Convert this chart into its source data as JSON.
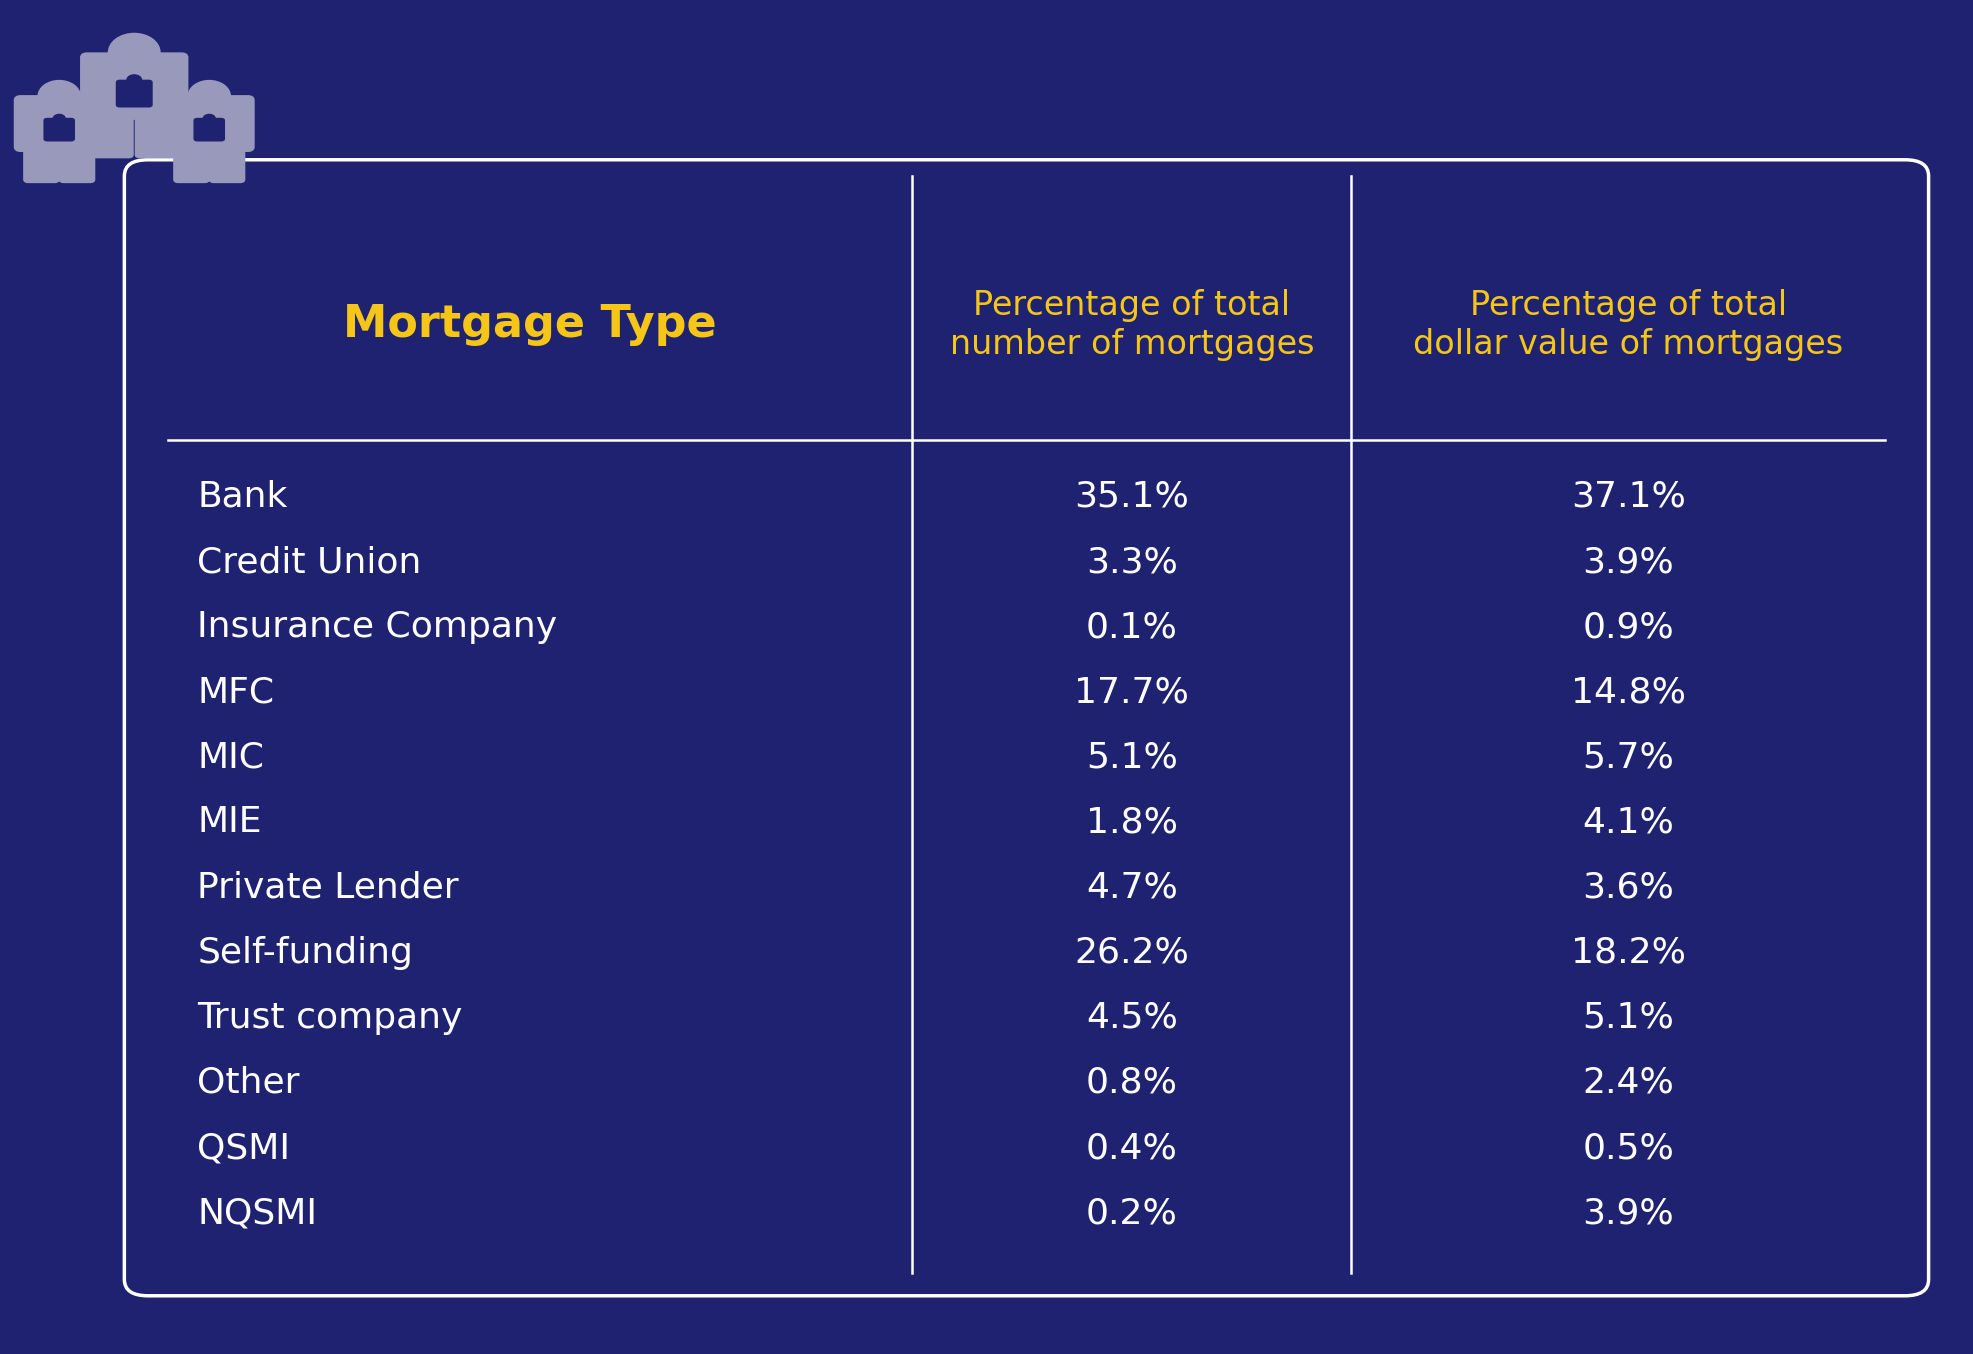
{
  "background_color": "#1e2270",
  "border_color": "#ffffff",
  "header_color": "#f5c518",
  "data_color": "#ffffff",
  "col1_header": "Mortgage Type",
  "col2_header": "Percentage of total\nnumber of mortgages",
  "col3_header": "Percentage of total\ndollar value of mortgages",
  "rows": [
    [
      "Bank",
      "35.1%",
      "37.1%"
    ],
    [
      "Credit Union",
      "3.3%",
      "3.9%"
    ],
    [
      "Insurance Company",
      "0.1%",
      "0.9%"
    ],
    [
      "MFC",
      "17.7%",
      "14.8%"
    ],
    [
      "MIC",
      "5.1%",
      "5.7%"
    ],
    [
      "MIE",
      "1.8%",
      "4.1%"
    ],
    [
      "Private Lender",
      "4.7%",
      "3.6%"
    ],
    [
      "Self-funding",
      "26.2%",
      "18.2%"
    ],
    [
      "Trust company",
      "4.5%",
      "5.1%"
    ],
    [
      "Other",
      "0.8%",
      "2.4%"
    ],
    [
      "QSMI",
      "0.4%",
      "0.5%"
    ],
    [
      "NQSMI",
      "0.2%",
      "3.9%"
    ]
  ],
  "header_fontsize": 24,
  "data_fontsize": 26,
  "col1_header_fontsize": 32,
  "icon_color": "#9999bb"
}
